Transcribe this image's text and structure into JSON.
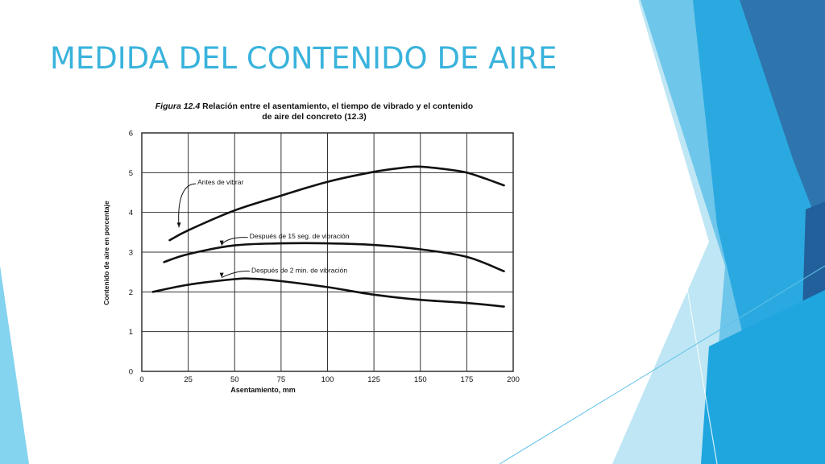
{
  "slide": {
    "title": "MEDIDA DEL CONTENIDO DE AIRE"
  },
  "figure": {
    "number": "Figura 12.4",
    "caption_line1": " Relación entre el asentamiento, el tiempo de vibrado y el contenido",
    "caption_line2": "de aire del concreto (12.3)"
  },
  "chart_data": {
    "type": "line",
    "title": "Figura 12.4 Relación entre el asentamiento, el tiempo de vibrado y el contenido de aire del concreto (12.3)",
    "xlabel": "Asentamiento, mm",
    "ylabel": "Contenido de aire en porcentaje",
    "xlim": [
      0,
      200
    ],
    "ylim": [
      0,
      6
    ],
    "xticks": [
      0,
      25,
      50,
      75,
      100,
      125,
      150,
      175,
      200
    ],
    "yticks": [
      0,
      1,
      2,
      3,
      4,
      5,
      6
    ],
    "grid": true,
    "legend": "annotations",
    "series": [
      {
        "name": "Antes de vibrar",
        "x": [
          15,
          25,
          50,
          75,
          100,
          125,
          140,
          150,
          165,
          175,
          185,
          195
        ],
        "y": [
          3.3,
          3.55,
          4.05,
          4.42,
          4.77,
          5.02,
          5.12,
          5.15,
          5.08,
          5.0,
          4.85,
          4.68
        ]
      },
      {
        "name": "Después de 15 seg. de vibración",
        "x": [
          12,
          25,
          50,
          75,
          100,
          125,
          150,
          175,
          195
        ],
        "y": [
          2.75,
          2.95,
          3.17,
          3.22,
          3.22,
          3.18,
          3.07,
          2.88,
          2.52
        ]
      },
      {
        "name": "Después de 2 min. de vibración",
        "x": [
          6,
          25,
          50,
          60,
          75,
          100,
          125,
          150,
          175,
          195
        ],
        "y": [
          2.0,
          2.18,
          2.32,
          2.33,
          2.27,
          2.12,
          1.93,
          1.8,
          1.72,
          1.63
        ]
      }
    ]
  },
  "colors": {
    "title": "#3ab3dc",
    "deco_light": "#bfe6f4",
    "deco_mid": "#5fc0e8",
    "deco_bright": "#1fa6df",
    "deco_dark": "#2e75ad",
    "deco_navy": "#21609a"
  }
}
